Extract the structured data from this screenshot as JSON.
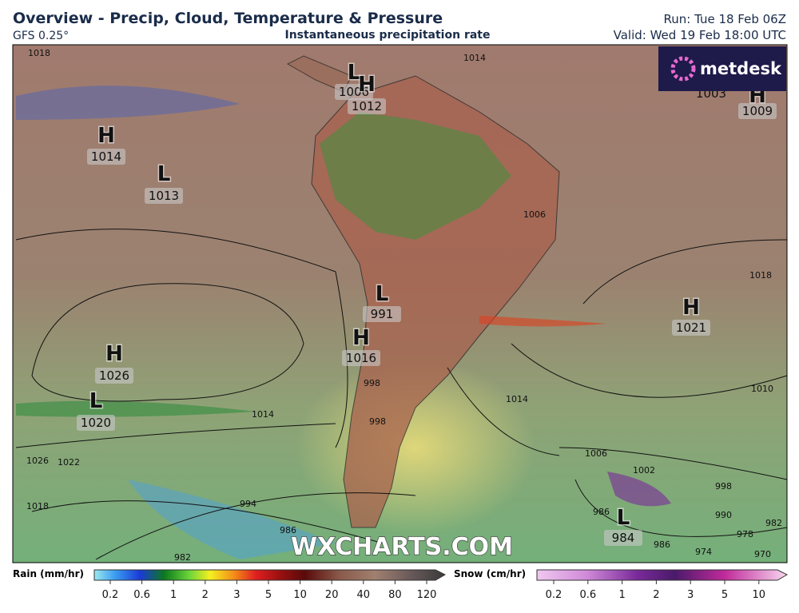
{
  "header": {
    "title": "Overview - Precip, Cloud, Temperature & Pressure",
    "model": "GFS 0.25°",
    "subtitle": "Instantaneous precipitation rate",
    "run": "Run: Tue 18 Feb 06Z",
    "valid": "Valid: Wed 19 Feb 18:00 UTC"
  },
  "logo": "metdesk",
  "watermark": "WXCHARTS.COM",
  "pressure_centers": [
    {
      "symbol": "H",
      "value": 1014
    },
    {
      "symbol": "L",
      "value": 1013
    },
    {
      "symbol": "H",
      "value": 1026
    },
    {
      "symbol": "L",
      "value": 1020
    },
    {
      "symbol": "L",
      "value": 1006
    },
    {
      "symbol": "H",
      "value": 1012
    },
    {
      "symbol": "L",
      "value": 991
    },
    {
      "symbol": "H",
      "value": 1016
    },
    {
      "symbol": "H",
      "value": 1021
    },
    {
      "symbol": "L",
      "value": 984
    },
    {
      "symbol": "H",
      "value": 1009
    }
  ],
  "pressure_values_partial": [
    1003
  ],
  "isobar_labels": [
    1018,
    1014,
    1006,
    1018,
    1014,
    1010,
    1014,
    1006,
    1002,
    998,
    994,
    990,
    986,
    986,
    982,
    978,
    986,
    982,
    974,
    970,
    1026,
    1022,
    1018,
    998,
    998
  ],
  "legend": {
    "rain": {
      "title": "Rain (mm/hr)",
      "ticks": [
        0.2,
        0.6,
        1,
        2,
        3,
        5,
        10,
        20,
        40,
        80,
        120
      ]
    },
    "snow": {
      "title": "Snow (cm/hr)",
      "ticks": [
        0.2,
        0.6,
        1,
        2,
        3,
        5,
        10
      ]
    }
  }
}
